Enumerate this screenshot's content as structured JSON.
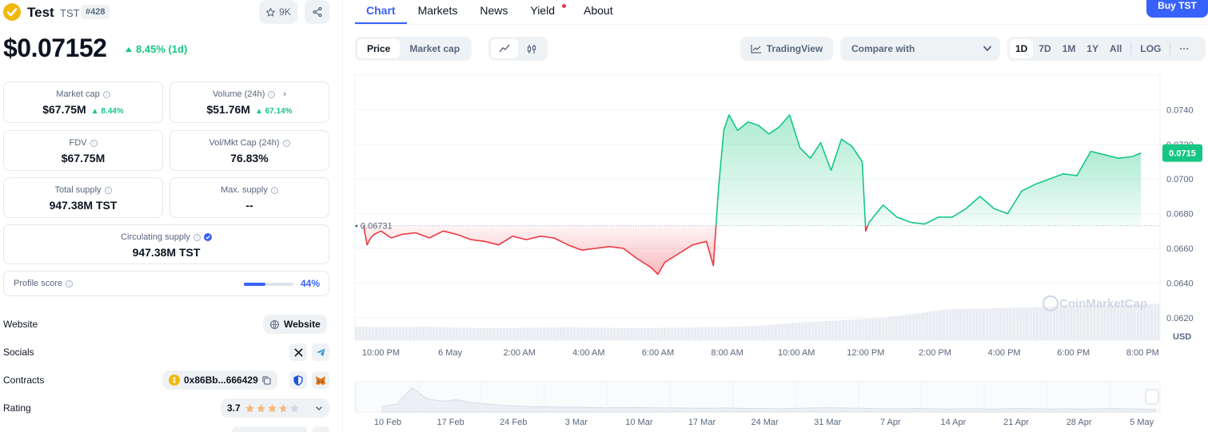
{
  "coin": {
    "name": "Test",
    "symbol": "TST",
    "rank": "#428",
    "watchlist_count": "9K",
    "price": "$0.07152",
    "change_1d": "8.45% (1d)"
  },
  "stats": {
    "market_cap": {
      "label": "Market cap",
      "value": "$67.75M",
      "change": "8.44%"
    },
    "volume": {
      "label": "Volume (24h)",
      "value": "$51.76M",
      "change": "67.14%"
    },
    "fdv": {
      "label": "FDV",
      "value": "$67.75M"
    },
    "vol_mkt": {
      "label": "Vol/Mkt Cap (24h)",
      "value": "76.83%"
    },
    "total_supply": {
      "label": "Total supply",
      "value": "947.38M TST"
    },
    "max_supply": {
      "label": "Max. supply",
      "value": "--"
    },
    "circulating_supply": {
      "label": "Circulating supply",
      "value": "947.38M TST"
    }
  },
  "profile": {
    "label": "Profile score",
    "percent": "44%",
    "fraction": 0.44
  },
  "links": {
    "website_label": "Website",
    "website_button": "Website",
    "socials_label": "Socials",
    "contracts_label": "Contracts",
    "contract_address": "0x86Bb...666429",
    "rating_label": "Rating",
    "rating_value": "3.7",
    "rating_stars": 3.7
  },
  "nav": {
    "tabs": [
      "Chart",
      "Markets",
      "News",
      "Yield",
      "About"
    ],
    "buy_button": "Buy TST"
  },
  "toolbar": {
    "price_tab": "Price",
    "market_cap_tab": "Market cap",
    "tradingview": "TradingView",
    "compare": "Compare with",
    "ranges": [
      "1D",
      "7D",
      "1M",
      "1Y",
      "All"
    ],
    "log": "LOG",
    "more": "···"
  },
  "colors": {
    "accent": "#3861fb",
    "up": "#16c784",
    "down": "#ea3943"
  },
  "chart_data": {
    "type": "area",
    "watermark": "CoinMarketCap",
    "currency_label": "USD",
    "baseline_value": 0.06731,
    "baseline_label": "0.06731",
    "current_value": 0.0715,
    "current_label": "0.0715",
    "y_ticks": [
      "0.0740",
      "0.0720",
      "0.0700",
      "0.0680",
      "0.0660",
      "0.0640",
      "0.0620"
    ],
    "y_range": [
      0.0607,
      0.076
    ],
    "x_ticks": [
      "10:00 PM",
      "6 May",
      "2:00 AM",
      "4:00 AM",
      "6:00 AM",
      "8:00 AM",
      "10:00 AM",
      "12:00 PM",
      "2:00 PM",
      "4:00 PM",
      "6:00 PM",
      "8:00 PM"
    ],
    "x_hours": [
      0,
      2,
      4,
      6,
      8,
      10,
      12,
      14,
      16,
      18,
      20,
      22
    ],
    "x_label_hours": [
      0,
      2,
      4,
      6,
      8,
      10,
      12,
      14,
      16,
      18,
      20,
      22
    ],
    "series": [
      {
        "x": [
          -0.5,
          -0.4,
          -0.3,
          -0.2,
          0.0,
          0.3,
          0.6,
          1.0,
          1.4,
          1.8,
          2.2,
          2.6,
          3.0,
          3.4,
          3.8,
          4.2,
          4.6,
          5.0,
          5.4,
          5.8,
          6.2,
          6.6,
          7.0,
          7.4,
          7.8,
          8.0,
          8.2,
          8.6,
          9.0,
          9.4,
          9.6,
          9.75,
          9.9,
          10.05,
          10.3,
          10.6,
          10.9,
          11.2,
          11.5,
          11.8,
          12.1,
          12.4,
          12.7,
          13.0,
          13.3,
          13.6,
          13.9,
          14.0,
          14.1,
          14.5,
          14.9,
          15.3,
          15.7,
          16.1,
          16.5,
          16.9,
          17.3,
          17.7,
          18.1,
          18.5,
          18.9,
          19.3,
          19.7,
          20.1,
          20.5,
          20.9,
          21.3,
          21.7,
          21.95
        ],
        "y": [
          0.0673,
          0.0662,
          0.0666,
          0.0668,
          0.067,
          0.0666,
          0.0668,
          0.0669,
          0.0666,
          0.067,
          0.0668,
          0.0665,
          0.0664,
          0.0662,
          0.0667,
          0.0665,
          0.0667,
          0.0666,
          0.0662,
          0.0659,
          0.066,
          0.0661,
          0.066,
          0.0654,
          0.0649,
          0.0645,
          0.0652,
          0.0657,
          0.0662,
          0.0664,
          0.065,
          0.0695,
          0.0728,
          0.0737,
          0.0728,
          0.0733,
          0.0731,
          0.0726,
          0.073,
          0.0737,
          0.0718,
          0.0712,
          0.0721,
          0.0705,
          0.0723,
          0.0719,
          0.071,
          0.067,
          0.0675,
          0.0685,
          0.0678,
          0.0675,
          0.0674,
          0.0678,
          0.0678,
          0.0683,
          0.069,
          0.0683,
          0.068,
          0.0693,
          0.0697,
          0.07,
          0.0703,
          0.0702,
          0.0716,
          0.0714,
          0.0712,
          0.0713,
          0.0715
        ]
      }
    ],
    "volume_fraction": [
      0.28,
      0.27,
      0.28,
      0.26,
      0.25,
      0.26,
      0.27,
      0.26,
      0.25,
      0.26,
      0.27,
      0.28,
      0.33,
      0.38,
      0.42,
      0.46,
      0.55,
      0.65,
      0.66,
      0.68,
      0.7,
      0.72,
      0.74,
      0.76
    ],
    "navigator": {
      "x_ticks": [
        "10 Feb",
        "17 Feb",
        "24 Feb",
        "3 Mar",
        "10 Mar",
        "17 Mar",
        "24 Mar",
        "31 Mar",
        "7 Apr",
        "14 Apr",
        "21 Apr",
        "28 Apr",
        "5 May"
      ]
    }
  }
}
